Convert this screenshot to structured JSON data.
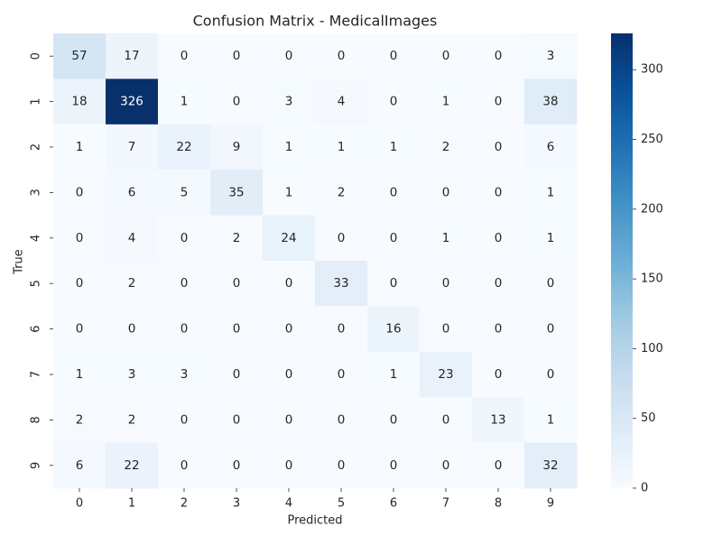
{
  "chart_data": {
    "type": "heatmap",
    "title": "Confusion Matrix - MedicalImages",
    "xlabel": "Predicted",
    "ylabel": "True",
    "x_categories": [
      "0",
      "1",
      "2",
      "3",
      "4",
      "5",
      "6",
      "7",
      "8",
      "9"
    ],
    "y_categories": [
      "0",
      "1",
      "2",
      "3",
      "4",
      "5",
      "6",
      "7",
      "8",
      "9"
    ],
    "values": [
      [
        57,
        17,
        0,
        0,
        0,
        0,
        0,
        0,
        0,
        3
      ],
      [
        18,
        326,
        1,
        0,
        3,
        4,
        0,
        1,
        0,
        38
      ],
      [
        1,
        7,
        22,
        9,
        1,
        1,
        1,
        2,
        0,
        6
      ],
      [
        0,
        6,
        5,
        35,
        1,
        2,
        0,
        0,
        0,
        1
      ],
      [
        0,
        4,
        0,
        2,
        24,
        0,
        0,
        1,
        0,
        1
      ],
      [
        0,
        2,
        0,
        0,
        0,
        33,
        0,
        0,
        0,
        0
      ],
      [
        0,
        0,
        0,
        0,
        0,
        0,
        16,
        0,
        0,
        0
      ],
      [
        1,
        3,
        3,
        0,
        0,
        0,
        1,
        23,
        0,
        0
      ],
      [
        2,
        2,
        0,
        0,
        0,
        0,
        0,
        0,
        13,
        1
      ],
      [
        6,
        22,
        0,
        0,
        0,
        0,
        0,
        0,
        0,
        32
      ]
    ],
    "colormap": "Blues",
    "vmin": 0,
    "vmax": 326,
    "colorbar_ticks": [
      0,
      50,
      100,
      150,
      200,
      250,
      300
    ],
    "annotations": true
  }
}
